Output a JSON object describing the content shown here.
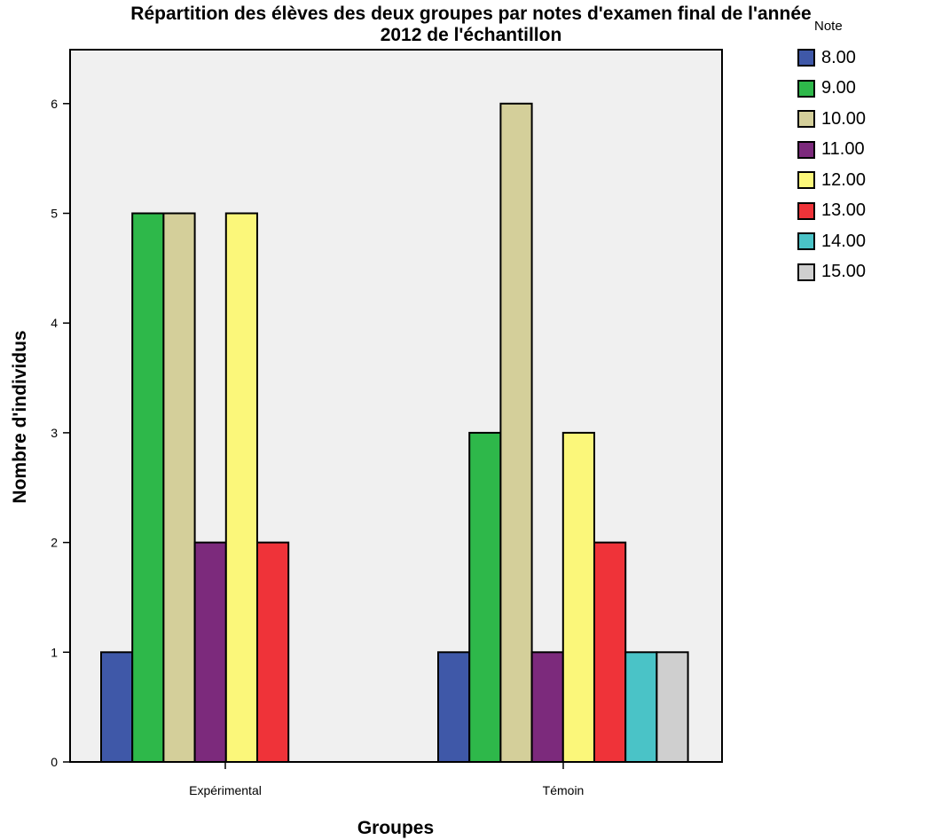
{
  "chart_data": {
    "type": "bar",
    "title_line1": "Répartition des élèves des deux groupes par notes d'examen final de l'année",
    "title_line2": "2012 de l'échantillon",
    "xlabel": "Groupes",
    "ylabel": "Nombre d'individus",
    "ylim": [
      0,
      6.2
    ],
    "yticks": [
      "0",
      "1",
      "2",
      "3",
      "4",
      "5",
      "6"
    ],
    "categories": [
      "Expérimental",
      "Témoin"
    ],
    "legend_title": "Note",
    "legend_placement": "top-right",
    "series": [
      {
        "name": "8.00",
        "color": "#3f58a8",
        "values": [
          1,
          1
        ]
      },
      {
        "name": "9.00",
        "color": "#2eb84a",
        "values": [
          5,
          3
        ]
      },
      {
        "name": "10.00",
        "color": "#d4cf9a",
        "values": [
          5,
          6
        ]
      },
      {
        "name": "11.00",
        "color": "#7c2a7c",
        "values": [
          2,
          1
        ]
      },
      {
        "name": "12.00",
        "color": "#fbf77a",
        "values": [
          5,
          3
        ]
      },
      {
        "name": "13.00",
        "color": "#ef3339",
        "values": [
          2,
          2
        ]
      },
      {
        "name": "14.00",
        "color": "#4ac3c7",
        "values": [
          0,
          1
        ]
      },
      {
        "name": "15.00",
        "color": "#cfcfcf",
        "values": [
          0,
          1
        ]
      }
    ],
    "plot_background": "#f0f0f0"
  }
}
